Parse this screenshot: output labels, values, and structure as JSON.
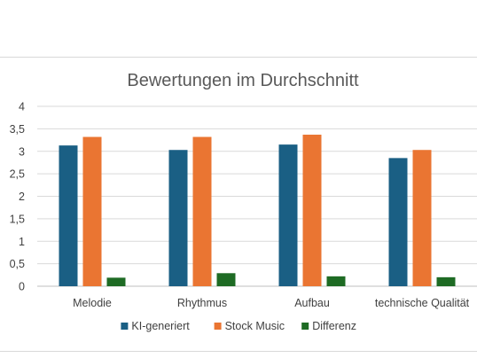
{
  "chart_data": {
    "type": "bar",
    "title": "Bewertungen im Durchschnitt",
    "categories": [
      "Melodie",
      "Rhythmus",
      "Aufbau",
      "technische Qualität"
    ],
    "series": [
      {
        "name": "KI-generiert",
        "color": "#1a5f84",
        "values": [
          3.13,
          3.03,
          3.15,
          2.85
        ]
      },
      {
        "name": "Stock Music",
        "color": "#ea7532",
        "values": [
          3.32,
          3.32,
          3.37,
          3.03
        ]
      },
      {
        "name": "Differenz",
        "color": "#1e6b24",
        "values": [
          0.19,
          0.29,
          0.22,
          0.2
        ]
      }
    ],
    "ylim": [
      0,
      4
    ],
    "yticks": [
      "0",
      "0,5",
      "1",
      "1,5",
      "2",
      "2,5",
      "3",
      "3,5",
      "4"
    ],
    "grid": true,
    "legend": "bottom"
  }
}
